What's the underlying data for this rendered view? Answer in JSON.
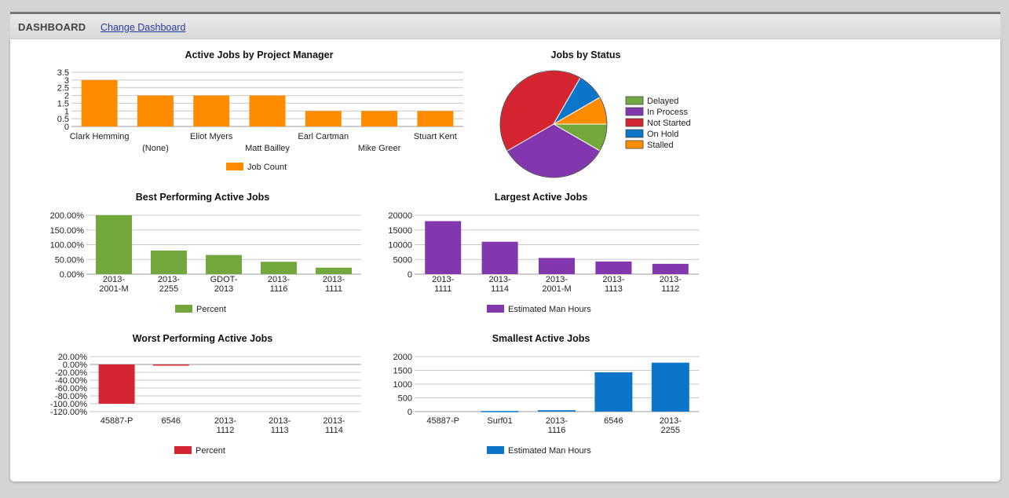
{
  "header": {
    "title": "DASHBOARD",
    "change_link": "Change Dashboard"
  },
  "colors": {
    "orange": "#ff8c00",
    "green": "#72a83b",
    "purple": "#8237ae",
    "red": "#d42531",
    "blue": "#0a75c9"
  },
  "chart_data": [
    {
      "id": "pm",
      "type": "bar",
      "title": "Active Jobs by Project Manager",
      "categories": [
        "Clark Hemming",
        "(None)",
        "Eliot Myers",
        "Matt Bailley",
        "Earl Cartman",
        "Mike Greer",
        "Stuart Kent"
      ],
      "series": [
        {
          "name": "Job Count",
          "values": [
            3,
            2,
            2,
            2,
            1,
            1,
            1
          ],
          "color": "#ff8c00"
        }
      ],
      "ylim": [
        0,
        3.5
      ],
      "yticks": [
        "0",
        "0.5",
        "1",
        "1.5",
        "2",
        "2.5",
        "3",
        "3.5"
      ],
      "grid": true,
      "legend": "bottom"
    },
    {
      "id": "status",
      "type": "pie",
      "title": "Jobs by Status",
      "slices": [
        {
          "name": "Delayed",
          "value": 1,
          "color": "#72a83b"
        },
        {
          "name": "In Process",
          "value": 4,
          "color": "#8237ae"
        },
        {
          "name": "Not Started",
          "value": 5,
          "color": "#d42531"
        },
        {
          "name": "On Hold",
          "value": 1,
          "color": "#0a75c9"
        },
        {
          "name": "Stalled",
          "value": 1,
          "color": "#ff8c00"
        }
      ],
      "legend": "right"
    },
    {
      "id": "best",
      "type": "bar",
      "title": "Best Performing Active Jobs",
      "categories": [
        "2013-\n2001-M",
        "2013-\n2255",
        "GDOT-\n2013",
        "2013-\n1116",
        "2013-\n1111"
      ],
      "series": [
        {
          "name": "Percent",
          "values": [
            200,
            80,
            65,
            42,
            22
          ],
          "color": "#72a83b"
        }
      ],
      "ylim": [
        0,
        200
      ],
      "yticks": [
        "0.00%",
        "50.00%",
        "100.00%",
        "150.00%",
        "200.00%"
      ],
      "grid": true,
      "legend": "bottom"
    },
    {
      "id": "largest",
      "type": "bar",
      "title": "Largest Active Jobs",
      "categories": [
        "2013-\n1111",
        "2013-\n1114",
        "2013-\n2001-M",
        "2013-\n1113",
        "2013-\n1112"
      ],
      "series": [
        {
          "name": "Estimated Man Hours",
          "values": [
            18000,
            11000,
            5500,
            4300,
            3500
          ],
          "color": "#8237ae"
        }
      ],
      "ylim": [
        0,
        20000
      ],
      "yticks": [
        "0",
        "5000",
        "10000",
        "15000",
        "20000"
      ],
      "grid": true,
      "legend": "bottom"
    },
    {
      "id": "worst",
      "type": "bar",
      "title": "Worst Performing Active Jobs",
      "categories": [
        "45887-P",
        "6546",
        "2013-\n1112",
        "2013-\n1113",
        "2013-\n1114"
      ],
      "series": [
        {
          "name": "Percent",
          "values": [
            -100,
            -2,
            0,
            0,
            0
          ],
          "color": "#d42531"
        }
      ],
      "ylim": [
        -120,
        20
      ],
      "yticks": [
        "-120.00%",
        "-100.00%",
        "-80.00%",
        "-60.00%",
        "-40.00%",
        "-20.00%",
        "0.00%",
        "20.00%"
      ],
      "grid": true,
      "legend": "bottom"
    },
    {
      "id": "smallest",
      "type": "bar",
      "title": "Smallest Active Jobs",
      "categories": [
        "45887-P",
        "Surf01",
        "2013-\n1116",
        "6546",
        "2013-\n2255"
      ],
      "series": [
        {
          "name": "Estimated Man Hours",
          "values": [
            0,
            20,
            50,
            1430,
            1780
          ],
          "color": "#0a75c9"
        }
      ],
      "ylim": [
        0,
        2000
      ],
      "yticks": [
        "0",
        "500",
        "1000",
        "1500",
        "2000"
      ],
      "grid": true,
      "legend": "bottom"
    }
  ]
}
